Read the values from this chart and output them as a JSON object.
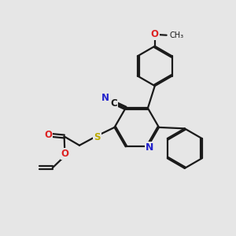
{
  "bg_color": "#e6e6e6",
  "bond_color": "#1a1a1a",
  "atom_colors": {
    "N": "#2222cc",
    "O": "#dd2222",
    "S": "#bbaa00",
    "C": "#1a1a1a"
  },
  "lw": 1.6,
  "dbo": 0.055
}
